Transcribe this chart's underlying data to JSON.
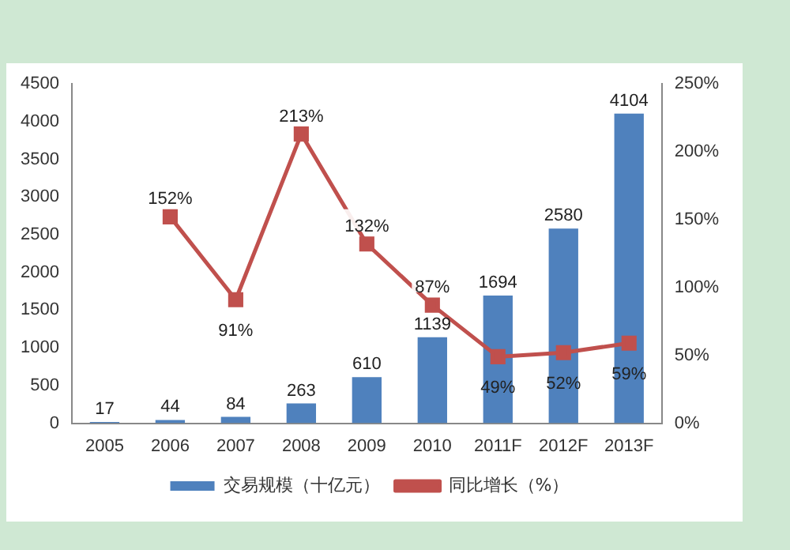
{
  "chart_data": {
    "type": "bar",
    "categories": [
      "2005",
      "2006",
      "2007",
      "2008",
      "2009",
      "2010",
      "2011F",
      "2012F",
      "2013F"
    ],
    "series": [
      {
        "name": "交易规模（十亿元）",
        "color": "#4f81bd",
        "values": [
          17,
          44,
          84,
          263,
          610,
          1139,
          1694,
          2580,
          4104
        ],
        "value_labels": [
          "17",
          "44",
          "84",
          "263",
          "610",
          "1139",
          "1694",
          "2580",
          "4104"
        ]
      },
      {
        "name": "同比增长（%）",
        "type": "line",
        "axis": "y2",
        "color": "#c0504d",
        "marker": "square",
        "values": [
          null,
          152,
          91,
          213,
          132,
          87,
          49,
          52,
          59
        ],
        "value_labels": [
          null,
          "152%",
          "91%",
          "213%",
          "132%",
          "87%",
          "49%",
          "52%",
          "59%"
        ]
      }
    ],
    "ylim": [
      0,
      4500
    ],
    "yticks": [
      0,
      500,
      1000,
      1500,
      2000,
      2500,
      3000,
      3500,
      4000,
      4500
    ],
    "y2lim": [
      0,
      250
    ],
    "y2ticks": [
      {
        "value": 0,
        "label": "0%"
      },
      {
        "value": 50,
        "label": "50%"
      },
      {
        "value": 100,
        "label": "100%"
      },
      {
        "value": 150,
        "label": "150%"
      },
      {
        "value": 200,
        "label": "200%"
      },
      {
        "value": 250,
        "label": "250%"
      }
    ],
    "grid": false,
    "legend": "bottom"
  }
}
